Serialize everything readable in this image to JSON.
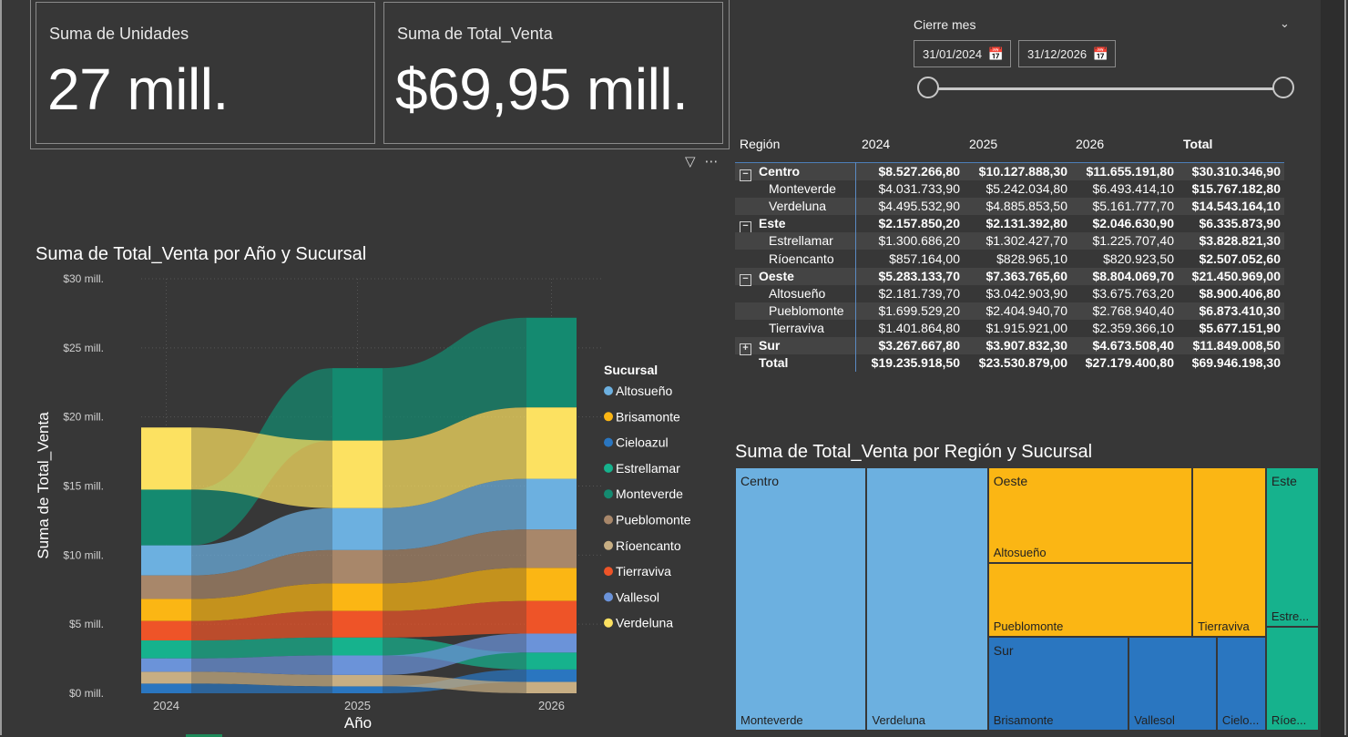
{
  "kpis": [
    {
      "label": "Suma de Unidades",
      "value": "27 mill."
    },
    {
      "label": "Suma de Total_Venta",
      "value": "$69,95 mill."
    }
  ],
  "slicer": {
    "title": "Cierre mes",
    "start_date": "31/01/2024",
    "end_date": "31/12/2026",
    "chevron_icon": "chevron-down-icon",
    "calendar_icon": "calendar-icon",
    "range_start_fraction": 0,
    "range_end_fraction": 1
  },
  "visual_header": {
    "filter_icon": "filter-icon",
    "more_icon": "more-options-icon"
  },
  "matrix": {
    "headers": [
      "Región",
      "2024",
      "2025",
      "2026",
      "Total"
    ],
    "rows": [
      {
        "label": "Centro",
        "level": 0,
        "expander": "⊟",
        "values": [
          "$8.527.266,80",
          "$10.127.888,30",
          "$11.655.191,80",
          "$30.310.346,90"
        ]
      },
      {
        "label": "Monteverde",
        "level": 1,
        "values": [
          "$4.031.733,90",
          "$5.242.034,80",
          "$6.493.414,10",
          "$15.767.182,80"
        ]
      },
      {
        "label": "Verdeluna",
        "level": 1,
        "values": [
          "$4.495.532,90",
          "$4.885.853,50",
          "$5.161.777,70",
          "$14.543.164,10"
        ]
      },
      {
        "label": "Este",
        "level": 0,
        "expander": "⊟",
        "values": [
          "$2.157.850,20",
          "$2.131.392,80",
          "$2.046.630,90",
          "$6.335.873,90"
        ]
      },
      {
        "label": "Estrellamar",
        "level": 1,
        "values": [
          "$1.300.686,20",
          "$1.302.427,70",
          "$1.225.707,40",
          "$3.828.821,30"
        ]
      },
      {
        "label": "Ríoencanto",
        "level": 1,
        "values": [
          "$857.164,00",
          "$828.965,10",
          "$820.923,50",
          "$2.507.052,60"
        ]
      },
      {
        "label": "Oeste",
        "level": 0,
        "expander": "⊟",
        "values": [
          "$5.283.133,70",
          "$7.363.765,60",
          "$8.804.069,70",
          "$21.450.969,00"
        ]
      },
      {
        "label": "Altosueño",
        "level": 1,
        "values": [
          "$2.181.739,70",
          "$3.042.903,90",
          "$3.675.763,20",
          "$8.900.406,80"
        ]
      },
      {
        "label": "Pueblomonte",
        "level": 1,
        "values": [
          "$1.699.529,20",
          "$2.404.940,70",
          "$2.768.940,40",
          "$6.873.410,30"
        ]
      },
      {
        "label": "Tierraviva",
        "level": 1,
        "values": [
          "$1.401.864,80",
          "$1.915.921,00",
          "$2.359.366,10",
          "$5.677.151,90"
        ]
      },
      {
        "label": "Sur",
        "level": 0,
        "expander": "⊞",
        "values": [
          "$3.267.667,80",
          "$3.907.832,30",
          "$4.673.508,40",
          "$11.849.008,50"
        ]
      },
      {
        "label": "Total",
        "level": 0,
        "values": [
          "$19.235.918,50",
          "$23.530.879,00",
          "$27.179.400,80",
          "$69.946.198,30"
        ]
      }
    ]
  },
  "chart_data": [
    {
      "type": "area",
      "title": "Suma de Total_Venta por Año y Sucursal",
      "xlabel": "Año",
      "ylabel": "Suma de Total_Venta",
      "categories": [
        "2024",
        "2025",
        "2026"
      ],
      "ylim": [
        0,
        30000000
      ],
      "yticks": [
        "$0 mill.",
        "$5 mill.",
        "$10 mill.",
        "$15 mill.",
        "$20 mill.",
        "$25 mill.",
        "$30 mill."
      ],
      "legend_title": "Sucursal",
      "legend_position": "right",
      "series": [
        {
          "name": "Altosueño",
          "color": "#6cb0e0",
          "values": [
            2181739.7,
            3042903.9,
            3675763.2
          ]
        },
        {
          "name": "Brisamonte",
          "color": "#fbb614",
          "values": [
            1600000,
            2000000,
            2400000
          ]
        },
        {
          "name": "Cieloazul",
          "color": "#2a76c0",
          "values": [
            700000,
            500000,
            900000
          ]
        },
        {
          "name": "Estrellamar",
          "color": "#16b28d",
          "values": [
            1300686.2,
            1302427.7,
            1225707.4
          ]
        },
        {
          "name": "Monteverde",
          "color": "#148a70",
          "values": [
            4031733.9,
            5242034.8,
            6493414.1
          ]
        },
        {
          "name": "Pueblomonte",
          "color": "#a8876a",
          "values": [
            1699529.2,
            2404940.7,
            2768940.4
          ]
        },
        {
          "name": "Ríoencanto",
          "color": "#c7ae83",
          "values": [
            857164.0,
            828965.1,
            820923.5
          ]
        },
        {
          "name": "Tierraviva",
          "color": "#ee5428",
          "values": [
            1401864.8,
            1915921.0,
            2359366.1
          ]
        },
        {
          "name": "Vallesol",
          "color": "#6b93d9",
          "values": [
            967667.8,
            1407832.3,
            1373508.4
          ]
        },
        {
          "name": "Verdeluna",
          "color": "#fce161",
          "values": [
            4495532.9,
            4885853.5,
            5161777.7
          ]
        }
      ],
      "stack_order_by_year": [
        [
          "Cieloazul",
          "Ríoencanto",
          "Vallesol",
          "Estrellamar",
          "Tierraviva",
          "Brisamonte",
          "Pueblomonte",
          "Altosueño",
          "Monteverde",
          "Verdeluna"
        ],
        [
          "Cieloazul",
          "Ríoencanto",
          "Vallesol",
          "Estrellamar",
          "Tierraviva",
          "Brisamonte",
          "Pueblomonte",
          "Altosueño",
          "Verdeluna",
          "Monteverde"
        ],
        [
          "Ríoencanto",
          "Cieloazul",
          "Estrellamar",
          "Vallesol",
          "Tierraviva",
          "Brisamonte",
          "Pueblomonte",
          "Altosueño",
          "Verdeluna",
          "Monteverde"
        ]
      ]
    },
    {
      "type": "treemap",
      "title": "Suma de Total_Venta por Región y Sucursal",
      "groups": [
        {
          "region": "Centro",
          "color": "#6cb0e0",
          "items": [
            {
              "name": "Monteverde",
              "value": 15767182.8
            },
            {
              "name": "Verdeluna",
              "value": 14543164.1
            }
          ]
        },
        {
          "region": "Oeste",
          "color": "#fbb614",
          "items": [
            {
              "name": "Altosueño",
              "value": 8900406.8
            },
            {
              "name": "Pueblomonte",
              "value": 6873410.3
            },
            {
              "name": "Tierraviva",
              "value": 5677151.9
            }
          ]
        },
        {
          "region": "Sur",
          "color": "#2a76c0",
          "items": [
            {
              "name": "Brisamonte",
              "value": 6000000
            },
            {
              "name": "Vallesol",
              "value": 3749008.5
            },
            {
              "name": "Cielo...",
              "value": 2100000
            }
          ]
        },
        {
          "region": "Este",
          "color": "#16b28d",
          "items": [
            {
              "name": "Estre...",
              "value": 3828821.3
            },
            {
              "name": "Ríoe...",
              "value": 2507052.6
            }
          ]
        }
      ]
    }
  ]
}
